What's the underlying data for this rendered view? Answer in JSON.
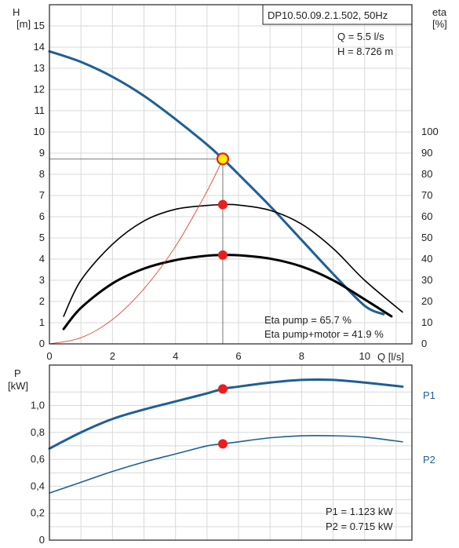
{
  "chart_data": [
    {
      "type": "line",
      "title": "DP10.50.09.2.1.502, 50Hz",
      "xlabel": "Q [l/s]",
      "ylabel_left": "H\n[m]",
      "ylabel_right": "eta\n[%]",
      "xlim": [
        0,
        11.5
      ],
      "ylim_left": [
        0,
        16
      ],
      "ylim_right": [
        0,
        160
      ],
      "x_ticks": [
        "0",
        "2",
        "4",
        "6",
        "8",
        "10"
      ],
      "y_ticks_left": [
        "0",
        "1",
        "2",
        "3",
        "4",
        "5",
        "6",
        "7",
        "8",
        "9",
        "10",
        "11",
        "12",
        "13",
        "14",
        "15"
      ],
      "y_ticks_right": [
        "0",
        "10",
        "20",
        "30",
        "40",
        "50",
        "60",
        "70",
        "80",
        "90",
        "100"
      ],
      "grid": true,
      "annotations": {
        "q": "Q = 5.5 l/s",
        "h": "H = 8.726 m",
        "eta_pump": "Eta pump = 65.7 %",
        "eta_total": "Eta pump+motor = 41.9 %"
      },
      "operating_point": {
        "q": 5.5,
        "h": 8.726,
        "eta_pump": 65.7,
        "eta_total": 41.9
      },
      "series": [
        {
          "key": "H",
          "axis": "left",
          "color": "#1f5f94",
          "width": 3,
          "x": [
            0,
            1,
            2,
            3,
            4,
            5,
            5.5,
            6,
            7,
            8,
            9,
            10,
            10.6
          ],
          "y": [
            13.8,
            13.3,
            12.6,
            11.7,
            10.6,
            9.4,
            8.726,
            8.0,
            6.5,
            4.9,
            3.3,
            1.8,
            1.4
          ]
        },
        {
          "key": "eta_pump",
          "axis": "right",
          "color": "#000000",
          "width": 1.6,
          "x": [
            0.45,
            1,
            2,
            3,
            4,
            5,
            5.5,
            6,
            7,
            8,
            9,
            10,
            11.2
          ],
          "y": [
            13,
            30,
            47,
            58,
            63.5,
            65.3,
            65.7,
            65.5,
            63,
            56.5,
            45,
            30,
            15
          ]
        },
        {
          "key": "eta_total",
          "axis": "right",
          "color": "#000000",
          "width": 3,
          "x": [
            0.45,
            1,
            2,
            3,
            4,
            5,
            5.5,
            6,
            7,
            8,
            9,
            10,
            10.85
          ],
          "y": [
            7,
            17,
            28.5,
            35.5,
            39.5,
            41.6,
            41.9,
            41.8,
            40.2,
            36.5,
            30,
            21,
            13
          ]
        },
        {
          "key": "system",
          "axis": "left",
          "color": "#e03020",
          "width": 0.8,
          "x": [
            0,
            1,
            2,
            3,
            4,
            5,
            5.5
          ],
          "y": [
            0,
            0.29,
            1.15,
            2.6,
            4.6,
            7.2,
            8.726
          ]
        }
      ],
      "markers": [
        {
          "axis": "left",
          "x": 5.5,
          "y": 8.726,
          "style": "yellow"
        },
        {
          "axis": "right",
          "x": 5.5,
          "y": 65.7,
          "style": "red"
        },
        {
          "axis": "right",
          "x": 5.5,
          "y": 41.9,
          "style": "red"
        }
      ]
    },
    {
      "type": "line",
      "ylabel": "P\n[kW]",
      "xlim": [
        0,
        11.5
      ],
      "ylim": [
        0,
        1.3
      ],
      "y_ticks": [
        "0",
        "0,2",
        "0,4",
        "0,6",
        "0,8",
        "1,0"
      ],
      "grid": true,
      "annotations": {
        "p1": "P1 = 1.123 kW",
        "p2": "P2 = 0.715 kW"
      },
      "series": [
        {
          "name": "P1",
          "color": "#1f5f94",
          "width": 3,
          "x": [
            0,
            1,
            2,
            3,
            4,
            5,
            5.5,
            6,
            7,
            8,
            9,
            10,
            11.2
          ],
          "y": [
            0.68,
            0.8,
            0.9,
            0.97,
            1.03,
            1.09,
            1.123,
            1.14,
            1.17,
            1.19,
            1.19,
            1.17,
            1.14
          ]
        },
        {
          "name": "P2",
          "color": "#1f5f94",
          "width": 1.6,
          "x": [
            0,
            1,
            2,
            3,
            4,
            5,
            5.5,
            6,
            7,
            8,
            9,
            10,
            11.2
          ],
          "y": [
            0.35,
            0.43,
            0.51,
            0.58,
            0.64,
            0.7,
            0.715,
            0.73,
            0.76,
            0.775,
            0.775,
            0.765,
            0.73
          ]
        }
      ],
      "markers": [
        {
          "x": 5.5,
          "y": 1.123,
          "style": "red"
        },
        {
          "x": 5.5,
          "y": 0.715,
          "style": "red"
        }
      ]
    }
  ]
}
